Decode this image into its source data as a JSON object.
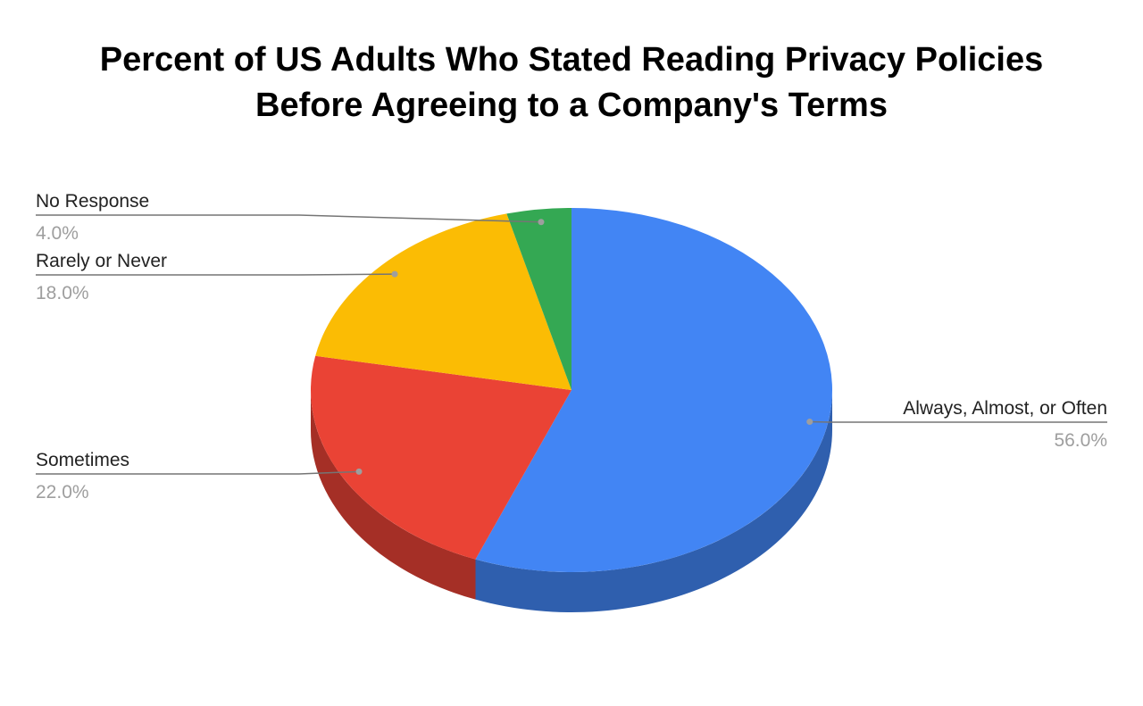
{
  "chart_data": {
    "type": "pie",
    "title_lines": [
      "Percent of US Adults Who Stated Reading Privacy Policies",
      "Before Agreeing to a Company's Terms"
    ],
    "slices": [
      {
        "label": "Always, Almost, or Often",
        "value": 56.0,
        "value_label": "56.0%",
        "color": "#4285f4",
        "side_color": "#2f5fae"
      },
      {
        "label": "Sometimes",
        "value": 22.0,
        "value_label": "22.0%",
        "color": "#ea4335",
        "side_color": "#a52f26"
      },
      {
        "label": "Rarely or Never",
        "value": 18.0,
        "value_label": "18.0%",
        "color": "#fbbc04",
        "side_color": "#b28503"
      },
      {
        "label": "No Response",
        "value": 4.0,
        "value_label": "4.0%",
        "color": "#34a853",
        "side_color": "#247638"
      }
    ],
    "style": "3d",
    "start_angle": "12 o'clock",
    "direction": "clockwise",
    "legend": "none (labels with leader lines)",
    "leader_line_color": "#757575"
  }
}
